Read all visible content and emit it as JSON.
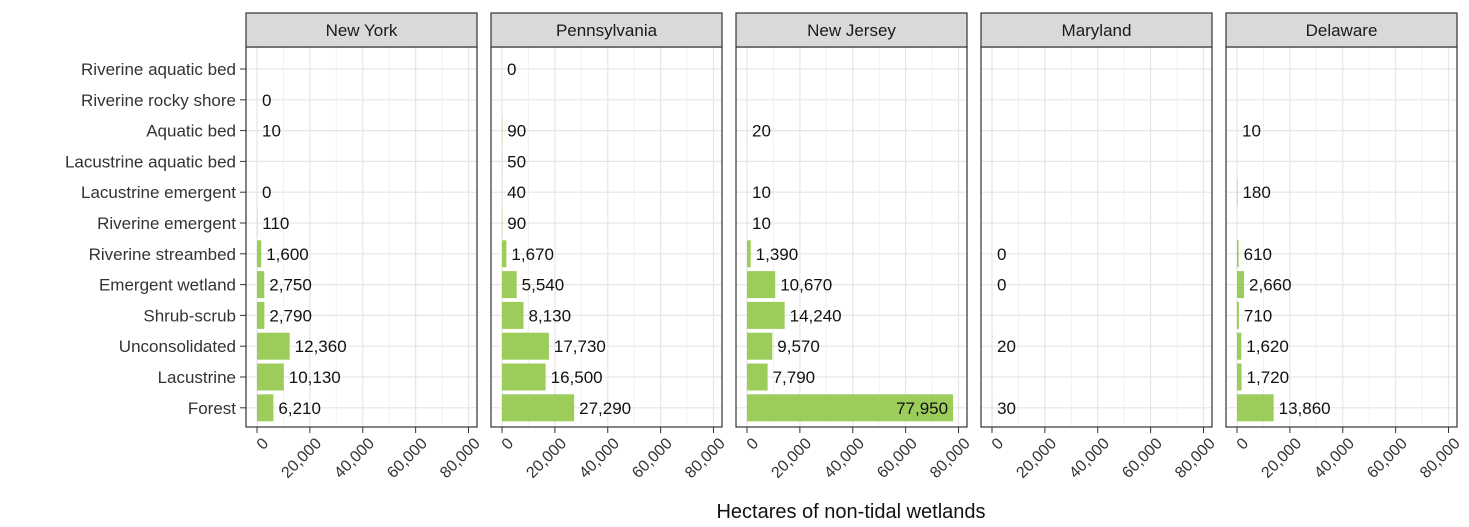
{
  "chart_data": {
    "type": "bar",
    "orientation": "horizontal",
    "xlabel": "Hectares of non-tidal wetlands",
    "ylabel": "",
    "xlim": [
      0,
      80000
    ],
    "xticks": [
      0,
      20000,
      40000,
      60000,
      80000
    ],
    "xtick_labels": [
      "0",
      "20,000",
      "40,000",
      "60,000",
      "80,000"
    ],
    "grid": true,
    "categories": [
      "Riverine aquatic bed",
      "Riverine rocky shore",
      "Aquatic bed",
      "Lacustrine aquatic bed",
      "Lacustrine emergent",
      "Riverine emergent",
      "Riverine streambed",
      "Emergent wetland",
      "Shrub-scrub",
      "Unconsolidated",
      "Lacustrine",
      "Forest"
    ],
    "bar_color": "#9ccc5a",
    "panels": [
      {
        "name": "New York",
        "values": [
          null,
          0,
          10,
          null,
          0,
          110,
          1600,
          2750,
          2790,
          12360,
          10130,
          6210
        ],
        "labels": [
          null,
          "0",
          "10",
          null,
          "0",
          "110",
          "1,600",
          "2,750",
          "2,790",
          "12,360",
          "10,130",
          "6,210"
        ]
      },
      {
        "name": "Pennsylvania",
        "values": [
          0,
          null,
          90,
          50,
          40,
          90,
          1670,
          5540,
          8130,
          17730,
          16500,
          27290
        ],
        "labels": [
          "0",
          null,
          "90",
          "50",
          "40",
          "90",
          "1,670",
          "5,540",
          "8,130",
          "17,730",
          "16,500",
          "27,290"
        ]
      },
      {
        "name": "New Jersey",
        "values": [
          null,
          null,
          20,
          null,
          10,
          10,
          1390,
          10670,
          14240,
          9570,
          7790,
          77950
        ],
        "labels": [
          null,
          null,
          "20",
          null,
          "10",
          "10",
          "1,390",
          "10,670",
          "14,240",
          "9,570",
          "7,790",
          "77,950"
        ]
      },
      {
        "name": "Maryland",
        "values": [
          null,
          null,
          null,
          null,
          null,
          null,
          0,
          0,
          null,
          20,
          null,
          30
        ],
        "labels": [
          null,
          null,
          null,
          null,
          null,
          null,
          "0",
          "0",
          null,
          "20",
          null,
          "30"
        ]
      },
      {
        "name": "Delaware",
        "values": [
          null,
          null,
          10,
          null,
          180,
          null,
          610,
          2660,
          710,
          1620,
          1720,
          13860
        ],
        "labels": [
          null,
          null,
          "10",
          null,
          "180",
          null,
          "610",
          "2,660",
          "710",
          "1,620",
          "1,720",
          "13,860"
        ]
      }
    ]
  }
}
